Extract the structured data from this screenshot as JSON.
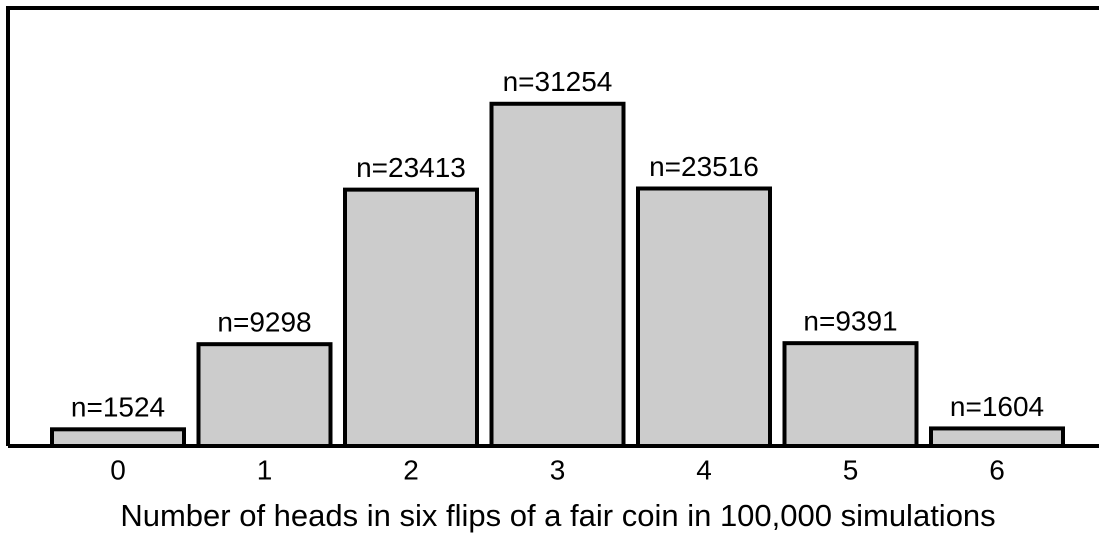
{
  "chart_data": {
    "type": "bar",
    "xlabel": "Number of heads in six flips of a fair coin in 100,000 simulations",
    "categories": [
      "0",
      "1",
      "2",
      "3",
      "4",
      "5",
      "6"
    ],
    "values": [
      1524,
      9298,
      23413,
      31254,
      23516,
      9391,
      1604
    ],
    "value_labels": [
      "n=1524",
      "n=9298",
      "n=23413",
      "n=31254",
      "n=23516",
      "n=9391",
      "n=1604"
    ],
    "color": "#cccccc",
    "ylim": [
      0,
      40000
    ]
  }
}
